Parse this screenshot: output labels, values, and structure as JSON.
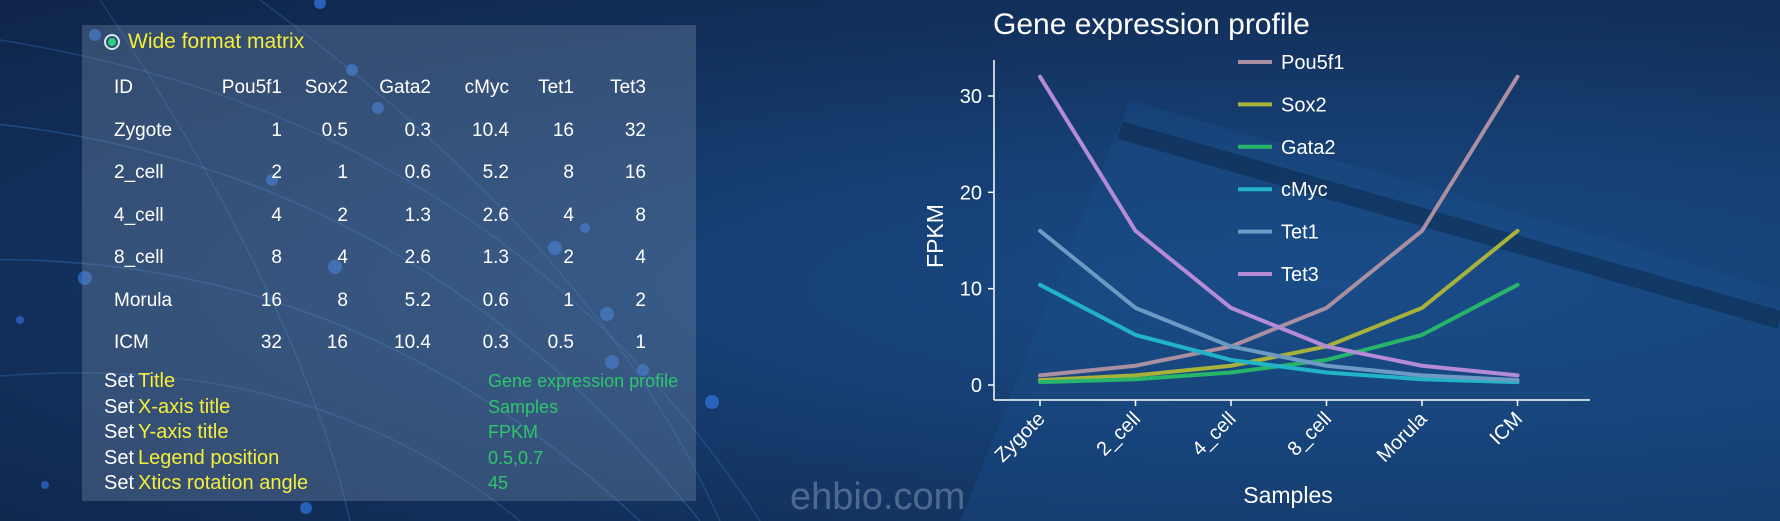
{
  "panel": {
    "title": "Wide format matrix",
    "columns": [
      "ID",
      "Pou5f1",
      "Sox2",
      "Gata2",
      "cMyc",
      "Tet1",
      "Tet3"
    ],
    "rows": [
      [
        "Zygote",
        "1",
        "0.5",
        "0.3",
        "10.4",
        "16",
        "32"
      ],
      [
        "2_cell",
        "2",
        "1",
        "0.6",
        "5.2",
        "8",
        "16"
      ],
      [
        "4_cell",
        "4",
        "2",
        "1.3",
        "2.6",
        "4",
        "8"
      ],
      [
        "8_cell",
        "8",
        "4",
        "2.6",
        "1.3",
        "2",
        "4"
      ],
      [
        "Morula",
        "16",
        "8",
        "5.2",
        "0.6",
        "1",
        "2"
      ],
      [
        "ICM",
        "32",
        "16",
        "10.4",
        "0.3",
        "0.5",
        "1"
      ]
    ],
    "settings": [
      {
        "set": "Set",
        "key": "Title",
        "value": "Gene expression profile"
      },
      {
        "set": "Set",
        "key": "X-axis title",
        "value": "Samples"
      },
      {
        "set": "Set",
        "key": "Y-axis title",
        "value": "FPKM"
      },
      {
        "set": "Set",
        "key": "Legend position",
        "value": "0.5,0.7"
      },
      {
        "set": "Set",
        "key": "Xtics rotation angle",
        "value": "45"
      }
    ]
  },
  "watermark": "ehbio.com",
  "chart_data": {
    "type": "line",
    "title": "Gene expression profile",
    "xlabel": "Samples",
    "ylabel": "FPKM",
    "categories": [
      "Zygote",
      "2_cell",
      "4_cell",
      "8_cell",
      "Morula",
      "ICM"
    ],
    "ylim": [
      0,
      33
    ],
    "yticks": [
      0,
      10,
      20,
      30
    ],
    "xtick_rotation": 45,
    "legend_position": "top-center",
    "grid": false,
    "series": [
      {
        "name": "Pou5f1",
        "color": "#a98fa1",
        "values": [
          1,
          2,
          4,
          8,
          16,
          32
        ]
      },
      {
        "name": "Sox2",
        "color": "#a8b23a",
        "values": [
          0.5,
          1,
          2,
          4,
          8,
          16
        ]
      },
      {
        "name": "Gata2",
        "color": "#27b56a",
        "values": [
          0.3,
          0.6,
          1.3,
          2.6,
          5.2,
          10.4
        ]
      },
      {
        "name": "cMyc",
        "color": "#22b3c6",
        "values": [
          10.4,
          5.2,
          2.6,
          1.3,
          0.6,
          0.3
        ]
      },
      {
        "name": "Tet1",
        "color": "#6d9ac4",
        "values": [
          16,
          8,
          4,
          2,
          1,
          0.5
        ]
      },
      {
        "name": "Tet3",
        "color": "#b58ad6",
        "values": [
          32,
          16,
          8,
          4,
          2,
          1
        ]
      }
    ]
  }
}
